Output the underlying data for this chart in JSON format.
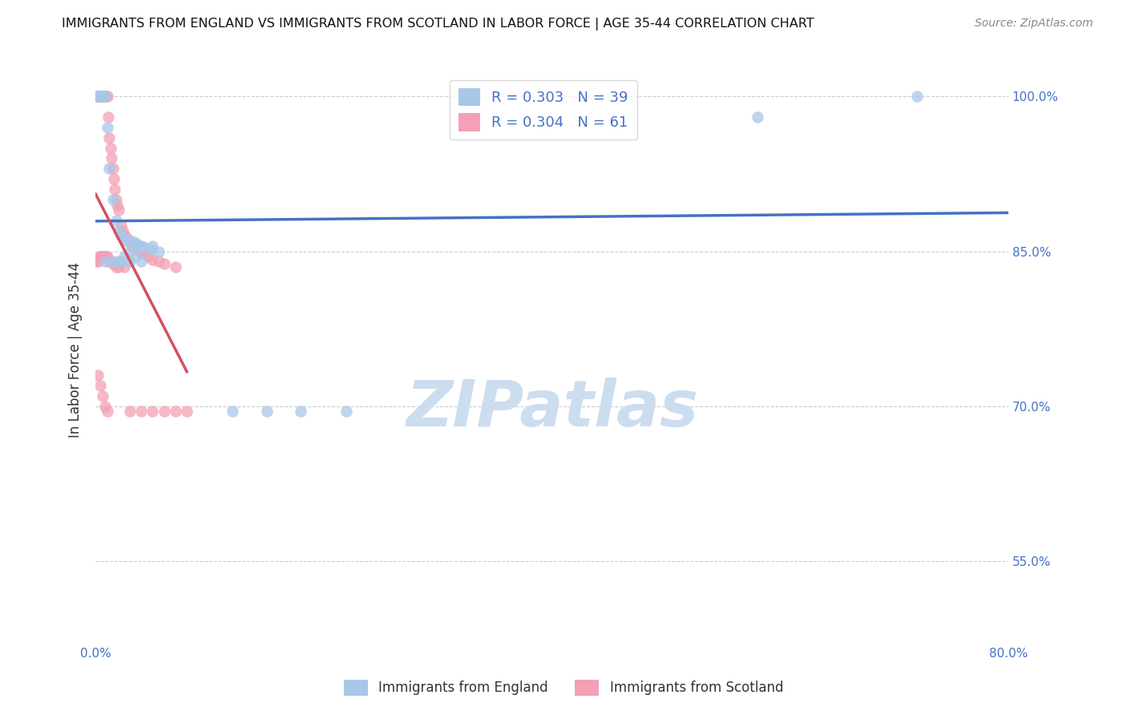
{
  "title": "IMMIGRANTS FROM ENGLAND VS IMMIGRANTS FROM SCOTLAND IN LABOR FORCE | AGE 35-44 CORRELATION CHART",
  "source": "Source: ZipAtlas.com",
  "ylabel": "In Labor Force | Age 35-44",
  "xlim": [
    0.0,
    0.8
  ],
  "ylim": [
    0.47,
    1.04
  ],
  "yticks": [
    0.55,
    0.7,
    0.85,
    1.0
  ],
  "right_ytick_labels": [
    "55.0%",
    "70.0%",
    "85.0%",
    "100.0%"
  ],
  "england_color": "#a8c8e8",
  "scotland_color": "#f4a0b5",
  "england_R": 0.303,
  "england_N": 39,
  "scotland_R": 0.304,
  "scotland_N": 61,
  "trend_england_color": "#4472c4",
  "trend_scotland_color": "#d45060",
  "background_color": "#ffffff",
  "grid_color": "#cccccc",
  "watermark": "ZIPatlas",
  "watermark_color": "#ccddf0",
  "england_x": [
    0.001,
    0.002,
    0.003,
    0.004,
    0.005,
    0.006,
    0.007,
    0.008,
    0.01,
    0.012,
    0.015,
    0.018,
    0.02,
    0.022,
    0.025,
    0.028,
    0.032,
    0.035,
    0.038,
    0.042,
    0.048,
    0.055,
    0.02,
    0.025,
    0.03,
    0.035,
    0.04,
    0.05,
    0.12,
    0.15,
    0.18,
    0.22,
    0.58,
    0.72,
    0.008,
    0.015,
    0.022,
    0.03,
    0.04
  ],
  "england_y": [
    1.0,
    1.0,
    1.0,
    1.0,
    1.0,
    1.0,
    1.0,
    1.0,
    0.97,
    0.93,
    0.9,
    0.88,
    0.87,
    0.865,
    0.862,
    0.86,
    0.86,
    0.858,
    0.856,
    0.854,
    0.852,
    0.85,
    0.84,
    0.845,
    0.85,
    0.845,
    0.855,
    0.855,
    0.695,
    0.695,
    0.695,
    0.695,
    0.98,
    1.0,
    0.84,
    0.84,
    0.84,
    0.84,
    0.84
  ],
  "scotland_x": [
    0.001,
    0.002,
    0.003,
    0.004,
    0.005,
    0.006,
    0.007,
    0.008,
    0.009,
    0.01,
    0.011,
    0.012,
    0.013,
    0.014,
    0.015,
    0.016,
    0.017,
    0.018,
    0.019,
    0.02,
    0.022,
    0.024,
    0.026,
    0.028,
    0.03,
    0.032,
    0.035,
    0.038,
    0.04,
    0.042,
    0.046,
    0.05,
    0.055,
    0.06,
    0.07,
    0.001,
    0.002,
    0.003,
    0.004,
    0.005,
    0.006,
    0.007,
    0.008,
    0.009,
    0.01,
    0.012,
    0.015,
    0.018,
    0.02,
    0.025,
    0.03,
    0.04,
    0.05,
    0.06,
    0.07,
    0.08,
    0.002,
    0.004,
    0.006,
    0.008,
    0.01
  ],
  "scotland_y": [
    1.0,
    1.0,
    1.0,
    1.0,
    1.0,
    1.0,
    1.0,
    1.0,
    1.0,
    1.0,
    0.98,
    0.96,
    0.95,
    0.94,
    0.93,
    0.92,
    0.91,
    0.9,
    0.895,
    0.89,
    0.875,
    0.87,
    0.865,
    0.862,
    0.858,
    0.855,
    0.853,
    0.851,
    0.85,
    0.848,
    0.845,
    0.842,
    0.84,
    0.838,
    0.835,
    0.84,
    0.84,
    0.845,
    0.845,
    0.845,
    0.845,
    0.845,
    0.845,
    0.845,
    0.845,
    0.84,
    0.838,
    0.835,
    0.835,
    0.835,
    0.695,
    0.695,
    0.695,
    0.695,
    0.695,
    0.695,
    0.73,
    0.72,
    0.71,
    0.7,
    0.695
  ]
}
